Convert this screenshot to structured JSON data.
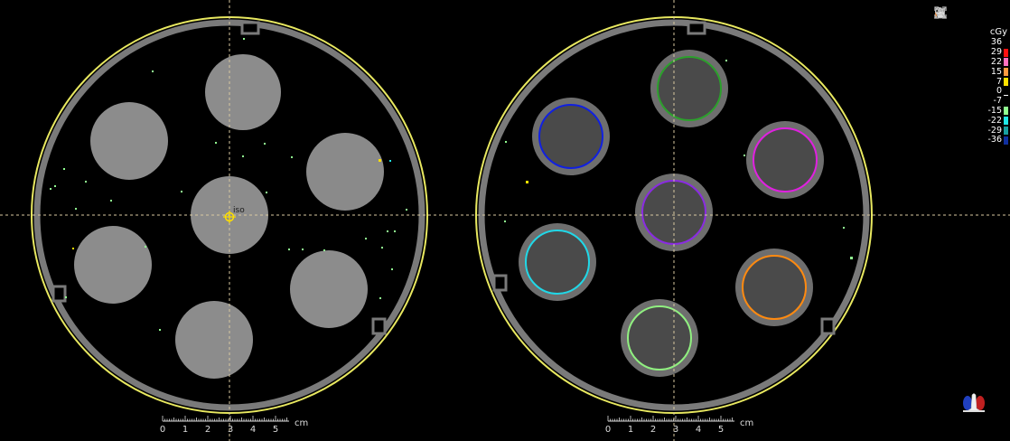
{
  "toolbar": {
    "tools": [
      {
        "name": "dose-profile-icon"
      },
      {
        "name": "pan-hand-icon"
      },
      {
        "name": "zoom-icon"
      },
      {
        "name": "fit-expand-icon"
      }
    ]
  },
  "legend": {
    "unit": "cGy",
    "entries": [
      {
        "value": "36",
        "color": "#000000"
      },
      {
        "value": "29",
        "color": "#ff1010"
      },
      {
        "value": "22",
        "color": "#ff70c0"
      },
      {
        "value": "15",
        "color": "#ff9a40"
      },
      {
        "value": "7",
        "color": "#ffe000"
      },
      {
        "value": "0",
        "color": "#000000"
      },
      {
        "value": "-7",
        "color": "#000000"
      },
      {
        "value": "-15",
        "color": "#90ff90"
      },
      {
        "value": "-22",
        "color": "#20e8e8"
      },
      {
        "value": "-29",
        "color": "#18a0a0"
      },
      {
        "value": "-36",
        "color": "#1030a0"
      }
    ]
  },
  "left_panel": {
    "iso_label": "iso",
    "scale": {
      "ticks": [
        "0",
        "1",
        "2",
        "3",
        "4",
        "5"
      ],
      "unit": "cm"
    }
  },
  "right_panel": {
    "scale": {
      "ticks": [
        "0",
        "1",
        "2",
        "3",
        "4",
        "5"
      ],
      "unit": "cm"
    },
    "contour_colors": [
      "#2ca02c",
      "#1020e0",
      "#e020e0",
      "#8a2be2",
      "#20d8e8",
      "#ff8a10",
      "#90f080"
    ]
  },
  "colors": {
    "phantom_outline": "#e8e860",
    "phantom_shell": "#7a7a7a",
    "insert_fill": "#8c8c8c",
    "crosshair": "#d8c8a0"
  }
}
